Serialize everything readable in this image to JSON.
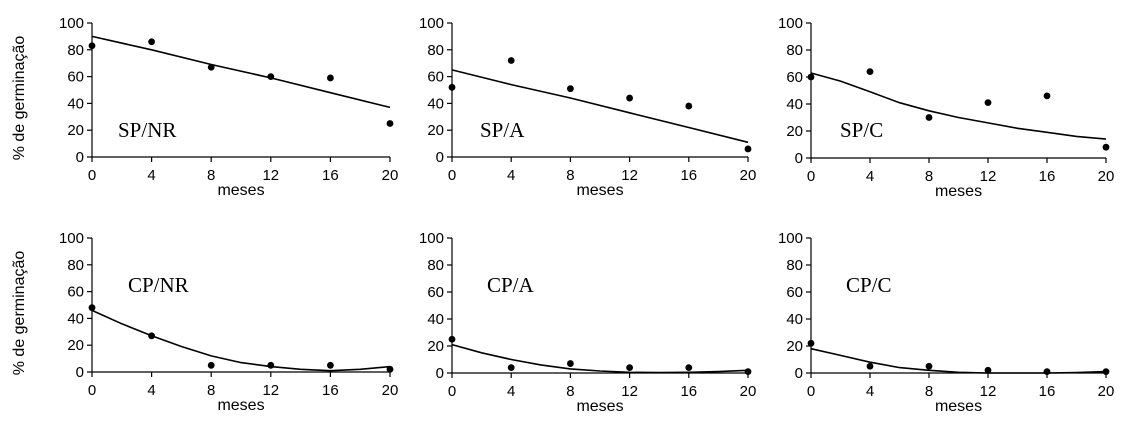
{
  "chart_data": [
    {
      "type": "scatter",
      "panel_label": "SP/NR",
      "xlabel": "meses",
      "ylabel": "% de germinação",
      "xlim": [
        0,
        20
      ],
      "ylim": [
        0,
        100
      ],
      "x_ticks": [
        "0",
        "4",
        "8",
        "12",
        "16",
        "20"
      ],
      "y_ticks": [
        "0",
        "20",
        "40",
        "60",
        "80",
        "100"
      ],
      "points": [
        {
          "x": 0,
          "y": 83
        },
        {
          "x": 4,
          "y": 86
        },
        {
          "x": 8,
          "y": 67
        },
        {
          "x": 12,
          "y": 60
        },
        {
          "x": 16,
          "y": 59
        },
        {
          "x": 20,
          "y": 25
        }
      ],
      "fit": [
        {
          "x": 0,
          "y": 90
        },
        {
          "x": 4,
          "y": 80
        },
        {
          "x": 8,
          "y": 69
        },
        {
          "x": 12,
          "y": 59
        },
        {
          "x": 16,
          "y": 48
        },
        {
          "x": 20,
          "y": 37
        }
      ]
    },
    {
      "type": "scatter",
      "panel_label": "SP/A",
      "xlabel": "meses",
      "ylabel": "",
      "xlim": [
        0,
        20
      ],
      "ylim": [
        0,
        100
      ],
      "x_ticks": [
        "0",
        "4",
        "8",
        "12",
        "16",
        "20"
      ],
      "y_ticks": [
        "0",
        "20",
        "40",
        "60",
        "80",
        "100"
      ],
      "points": [
        {
          "x": 0,
          "y": 52
        },
        {
          "x": 4,
          "y": 72
        },
        {
          "x": 8,
          "y": 51
        },
        {
          "x": 12,
          "y": 44
        },
        {
          "x": 16,
          "y": 38
        },
        {
          "x": 20,
          "y": 6
        }
      ],
      "fit": [
        {
          "x": 0,
          "y": 65
        },
        {
          "x": 4,
          "y": 54
        },
        {
          "x": 8,
          "y": 44
        },
        {
          "x": 12,
          "y": 33
        },
        {
          "x": 16,
          "y": 22
        },
        {
          "x": 20,
          "y": 11
        }
      ]
    },
    {
      "type": "scatter",
      "panel_label": "SP/C",
      "xlabel": "meses",
      "ylabel": "",
      "xlim": [
        0,
        20
      ],
      "ylim": [
        0,
        100
      ],
      "x_ticks": [
        "0",
        "4",
        "8",
        "12",
        "16",
        "20"
      ],
      "y_ticks": [
        "0",
        "20",
        "40",
        "60",
        "80",
        "100"
      ],
      "points": [
        {
          "x": 0,
          "y": 60
        },
        {
          "x": 4,
          "y": 64
        },
        {
          "x": 8,
          "y": 30
        },
        {
          "x": 12,
          "y": 41
        },
        {
          "x": 16,
          "y": 46
        },
        {
          "x": 20,
          "y": 8
        }
      ],
      "fit": [
        {
          "x": 0,
          "y": 63
        },
        {
          "x": 2,
          "y": 57
        },
        {
          "x": 4,
          "y": 49
        },
        {
          "x": 6,
          "y": 41
        },
        {
          "x": 8,
          "y": 35
        },
        {
          "x": 10,
          "y": 30
        },
        {
          "x": 12,
          "y": 26
        },
        {
          "x": 14,
          "y": 22
        },
        {
          "x": 16,
          "y": 19
        },
        {
          "x": 18,
          "y": 16
        },
        {
          "x": 20,
          "y": 14
        }
      ]
    },
    {
      "type": "scatter",
      "panel_label": "CP/NR",
      "xlabel": "meses",
      "ylabel": "% de germinação",
      "xlim": [
        0,
        20
      ],
      "ylim": [
        0,
        100
      ],
      "x_ticks": [
        "0",
        "4",
        "8",
        "12",
        "16",
        "20"
      ],
      "y_ticks": [
        "0",
        "20",
        "40",
        "60",
        "80",
        "100"
      ],
      "points": [
        {
          "x": 0,
          "y": 48
        },
        {
          "x": 4,
          "y": 27
        },
        {
          "x": 8,
          "y": 5
        },
        {
          "x": 12,
          "y": 5
        },
        {
          "x": 16,
          "y": 5
        },
        {
          "x": 20,
          "y": 2
        }
      ],
      "fit": [
        {
          "x": 0,
          "y": 46
        },
        {
          "x": 2,
          "y": 36
        },
        {
          "x": 4,
          "y": 27
        },
        {
          "x": 6,
          "y": 19
        },
        {
          "x": 8,
          "y": 12
        },
        {
          "x": 10,
          "y": 7
        },
        {
          "x": 12,
          "y": 4
        },
        {
          "x": 14,
          "y": 2
        },
        {
          "x": 16,
          "y": 1
        },
        {
          "x": 18,
          "y": 2
        },
        {
          "x": 20,
          "y": 4
        }
      ]
    },
    {
      "type": "scatter",
      "panel_label": "CP/A",
      "xlabel": "meses",
      "ylabel": "",
      "xlim": [
        0,
        20
      ],
      "ylim": [
        0,
        100
      ],
      "x_ticks": [
        "0",
        "4",
        "8",
        "12",
        "16",
        "20"
      ],
      "y_ticks": [
        "0",
        "20",
        "40",
        "60",
        "80",
        "100"
      ],
      "points": [
        {
          "x": 0,
          "y": 25
        },
        {
          "x": 4,
          "y": 4
        },
        {
          "x": 8,
          "y": 7
        },
        {
          "x": 12,
          "y": 4
        },
        {
          "x": 16,
          "y": 4
        },
        {
          "x": 20,
          "y": 1
        }
      ],
      "fit": [
        {
          "x": 0,
          "y": 21
        },
        {
          "x": 2,
          "y": 15
        },
        {
          "x": 4,
          "y": 10
        },
        {
          "x": 6,
          "y": 6
        },
        {
          "x": 8,
          "y": 3
        },
        {
          "x": 10,
          "y": 1.5
        },
        {
          "x": 12,
          "y": 0.5
        },
        {
          "x": 14,
          "y": 0.3
        },
        {
          "x": 16,
          "y": 0.5
        },
        {
          "x": 18,
          "y": 1
        },
        {
          "x": 20,
          "y": 2
        }
      ]
    },
    {
      "type": "scatter",
      "panel_label": "CP/C",
      "xlabel": "meses",
      "ylabel": "",
      "xlim": [
        0,
        20
      ],
      "ylim": [
        0,
        100
      ],
      "x_ticks": [
        "0",
        "4",
        "8",
        "12",
        "16",
        "20"
      ],
      "y_ticks": [
        "0",
        "20",
        "40",
        "60",
        "80",
        "100"
      ],
      "points": [
        {
          "x": 0,
          "y": 22
        },
        {
          "x": 4,
          "y": 5
        },
        {
          "x": 8,
          "y": 5
        },
        {
          "x": 12,
          "y": 2
        },
        {
          "x": 16,
          "y": 1
        },
        {
          "x": 20,
          "y": 1
        }
      ],
      "fit": [
        {
          "x": 0,
          "y": 18
        },
        {
          "x": 2,
          "y": 13
        },
        {
          "x": 4,
          "y": 8
        },
        {
          "x": 6,
          "y": 4
        },
        {
          "x": 8,
          "y": 2
        },
        {
          "x": 10,
          "y": 0.5
        },
        {
          "x": 12,
          "y": 0
        },
        {
          "x": 14,
          "y": 0
        },
        {
          "x": 16,
          "y": 0
        },
        {
          "x": 18,
          "y": 0.3
        },
        {
          "x": 20,
          "y": 1
        }
      ]
    }
  ]
}
